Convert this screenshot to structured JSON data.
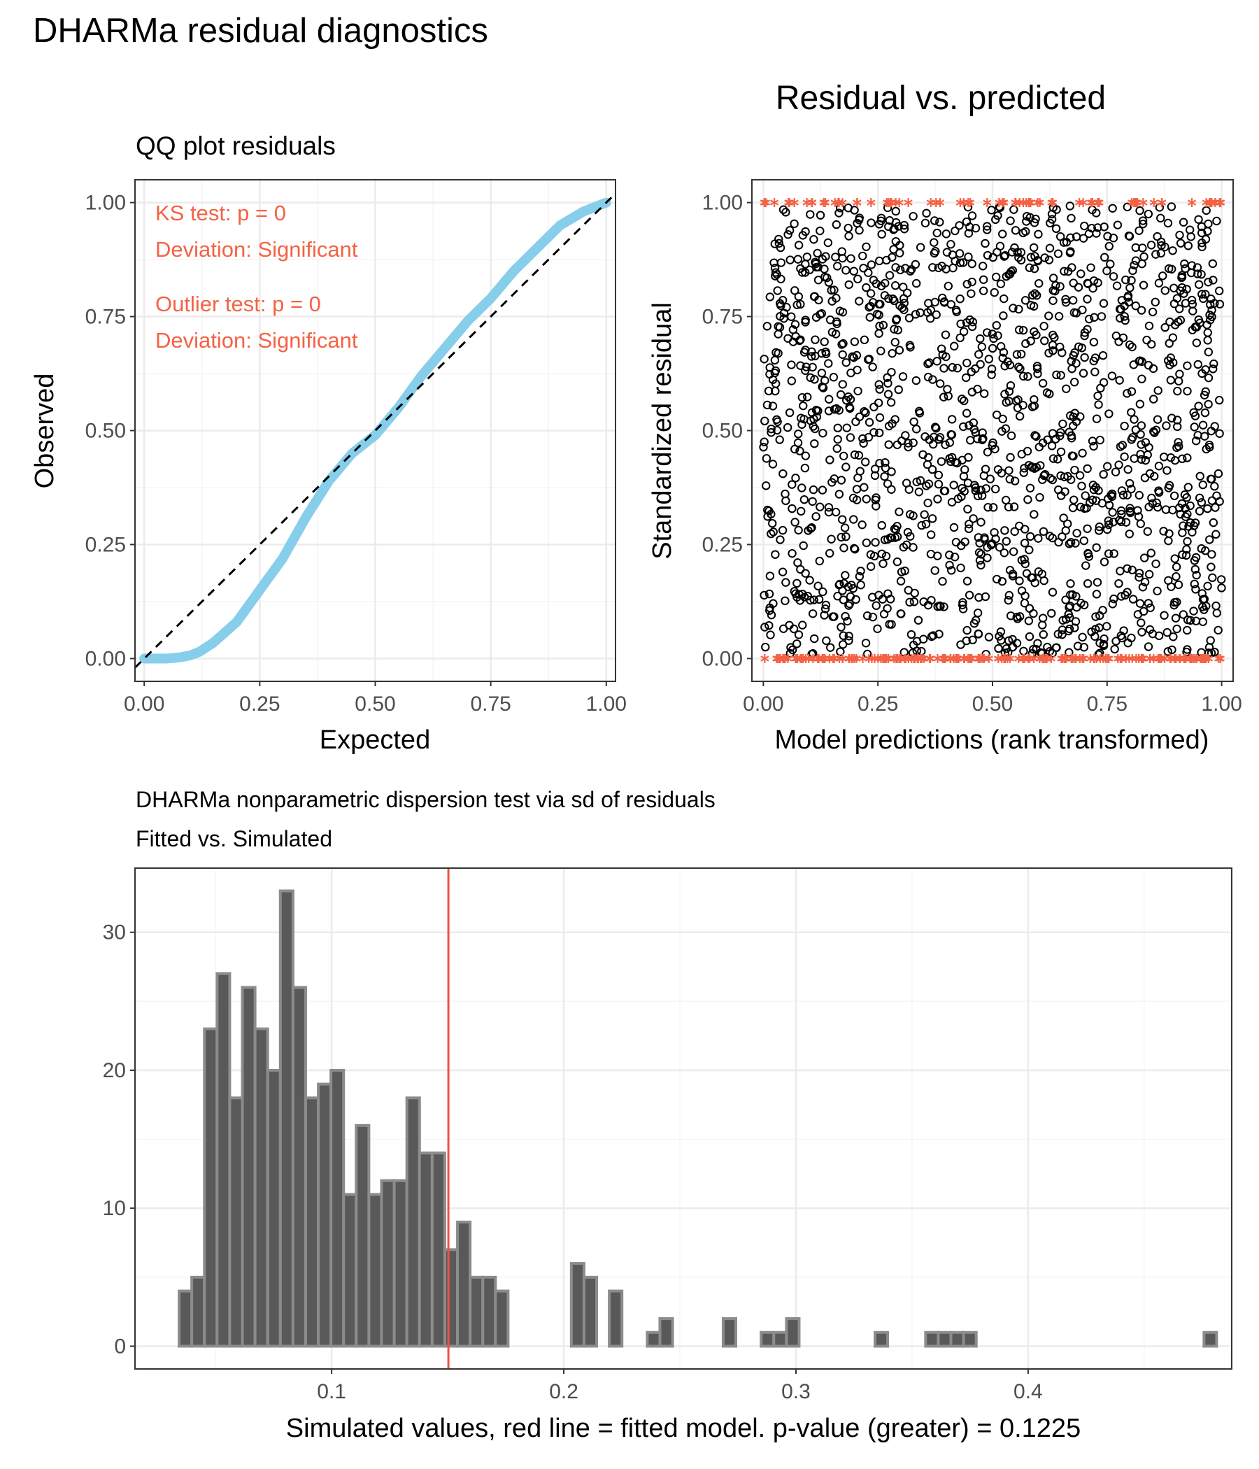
{
  "figure_title": "DHARMa residual diagnostics",
  "colors": {
    "qq_points": "#87CEEB",
    "annotation": "#F46245",
    "outlier": "#F46245",
    "vline": "#E8563C",
    "bar_fill": "#595959",
    "bar_outline": "#8C8C8C",
    "grid_major": "#EBEBEB",
    "grid_minor": "#F5F5F5",
    "axis_text": "#4D4D4D"
  },
  "qq_plot": {
    "title": "QQ plot residuals",
    "xlabel": "Expected",
    "ylabel": "Observed",
    "annotations": [
      "KS test: p = 0",
      "Deviation: Significant",
      "Outlier test: p = 0",
      "Deviation: Significant"
    ]
  },
  "residual_plot": {
    "title": "Residual vs. predicted",
    "xlabel": "Model predictions (rank transformed)",
    "ylabel": "Standardized residual"
  },
  "dispersion_plot": {
    "title": "DHARMa nonparametric dispersion test via sd of residuals",
    "subtitle": "Fitted vs. Simulated",
    "xlabel": "Simulated values, red line = fitted model. p-value (greater) = 0.1225"
  },
  "chart_data": [
    {
      "type": "scatter",
      "title": "QQ plot residuals",
      "xlabel": "Expected",
      "ylabel": "Observed",
      "xlim": [
        -0.02,
        1.02
      ],
      "ylim": [
        -0.05,
        1.05
      ],
      "x_ticks": [
        "0.00",
        "0.25",
        "0.50",
        "0.75",
        "1.00"
      ],
      "y_ticks": [
        "0.00",
        "0.25",
        "0.50",
        "0.75",
        "1.00"
      ],
      "grid": true,
      "reference_line": {
        "slope": 1,
        "intercept": 0,
        "style": "dashed"
      },
      "qq_curve": {
        "x": [
          0.0,
          0.05,
          0.08,
          0.1,
          0.12,
          0.15,
          0.2,
          0.25,
          0.3,
          0.35,
          0.4,
          0.45,
          0.5,
          0.55,
          0.6,
          0.65,
          0.7,
          0.75,
          0.8,
          0.85,
          0.9,
          0.95,
          1.0
        ],
        "y": [
          0.0,
          0.0,
          0.003,
          0.007,
          0.015,
          0.035,
          0.08,
          0.15,
          0.22,
          0.31,
          0.39,
          0.45,
          0.49,
          0.55,
          0.62,
          0.68,
          0.74,
          0.79,
          0.85,
          0.9,
          0.95,
          0.98,
          1.0
        ]
      },
      "annotations": [
        "KS test: p = 0",
        "Deviation: Significant",
        "Outlier test: p = 0",
        "Deviation: Significant"
      ]
    },
    {
      "type": "scatter",
      "title": "Residual vs. predicted",
      "xlabel": "Model predictions (rank transformed)",
      "ylabel": "Standardized residual",
      "xlim": [
        -0.025,
        1.025
      ],
      "ylim": [
        -0.05,
        1.05
      ],
      "x_ticks": [
        "0.00",
        "0.25",
        "0.50",
        "0.75",
        "1.00"
      ],
      "y_ticks": [
        "0.00",
        "0.25",
        "0.50",
        "0.75",
        "1.00"
      ],
      "grid": true,
      "series": [
        {
          "name": "residuals",
          "n_points_approx": 1600,
          "distribution": "uniform over [0,1] x [0,1]",
          "marker": "open circle"
        },
        {
          "name": "outliers",
          "y_values": [
            0,
            1
          ],
          "marker": "red asterisk"
        }
      ]
    },
    {
      "type": "bar",
      "title": "DHARMa nonparametric dispersion test via sd of residuals",
      "subtitle": "Fitted vs. Simulated",
      "xlabel": "Simulated values, red line = fitted model. p-value (greater) = 0.1225",
      "ylabel": "",
      "xlim": [
        0.0153,
        0.4877
      ],
      "ylim": [
        -1.65,
        34.65
      ],
      "x_ticks": [
        "0.1",
        "0.2",
        "0.3",
        "0.4"
      ],
      "y_ticks": [
        "0",
        "10",
        "20",
        "30"
      ],
      "bin_width": 0.00545,
      "bins_start": 0.0343,
      "counts": [
        4,
        5,
        23,
        27,
        18,
        26,
        23,
        20,
        33,
        26,
        18,
        19,
        20,
        11,
        16,
        11,
        12,
        12,
        18,
        14,
        14,
        7,
        9,
        5,
        5,
        4,
        0,
        0,
        0,
        0,
        0,
        6,
        5,
        0,
        4,
        0,
        0,
        1,
        2,
        0,
        0,
        0,
        0,
        2,
        0,
        0,
        1,
        1,
        2,
        0,
        0,
        0,
        0,
        0,
        0,
        1,
        0,
        0,
        0,
        1,
        1,
        1,
        1,
        0,
        0,
        0,
        0,
        0,
        0,
        0,
        0,
        0,
        0,
        0,
        0,
        0,
        0,
        0,
        0,
        0,
        0,
        1,
        0,
        0,
        0,
        0,
        0,
        0,
        0,
        0,
        0,
        0,
        0,
        0,
        0,
        0,
        0,
        0,
        1,
        0,
        0,
        0,
        0,
        0,
        1
      ],
      "vline": 0.1503,
      "grid": true
    }
  ]
}
